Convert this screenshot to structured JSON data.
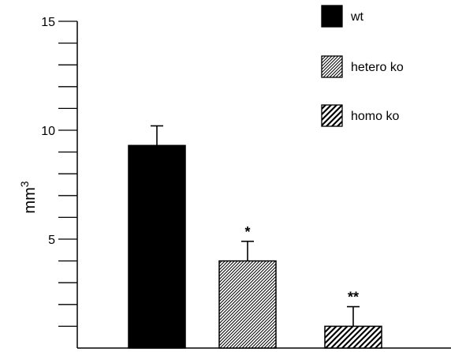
{
  "chart_data": {
    "type": "bar",
    "title": "",
    "xlabel": "",
    "ylabel": "mm",
    "ylabel_superscript": "3",
    "ylim": [
      0,
      15
    ],
    "yticks_labeled": [
      5,
      10,
      15
    ],
    "yticks_minor_step": 1,
    "categories": [
      "wt",
      "hetero ko",
      "homo ko"
    ],
    "values": [
      9.3,
      4.0,
      1.0
    ],
    "errors": [
      0.9,
      0.9,
      0.9
    ],
    "significance": [
      "",
      "*",
      "**"
    ],
    "fills": [
      "solid",
      "fine-hatch",
      "coarse-hatch"
    ],
    "colors": {
      "bar": "#000000",
      "hatch_bg": "#ffffff"
    },
    "legend": {
      "placement": "top-right",
      "entries": [
        "wt",
        "hetero ko",
        "homo ko"
      ]
    },
    "grid": false
  }
}
